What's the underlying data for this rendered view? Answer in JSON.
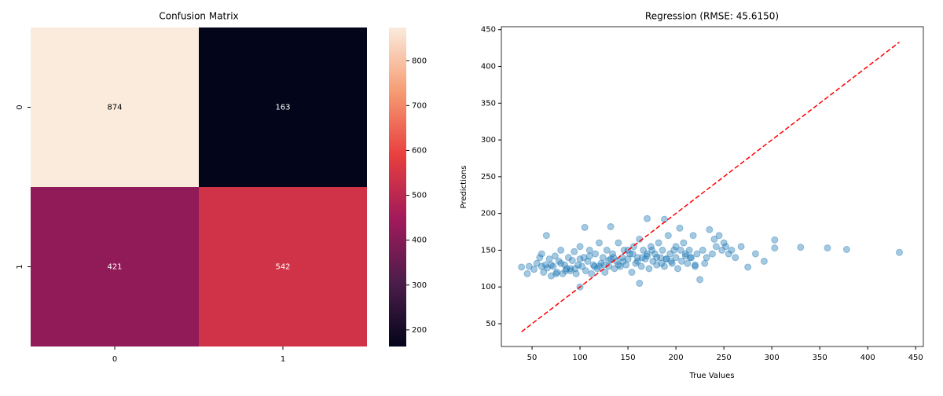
{
  "chart_data": [
    {
      "type": "heatmap",
      "title": "Confusion Matrix",
      "x_categories": [
        "0",
        "1"
      ],
      "y_categories": [
        "0",
        "1"
      ],
      "values": [
        [
          874,
          163
        ],
        [
          421,
          542
        ]
      ],
      "clim": [
        163,
        874
      ],
      "cticks": [
        200,
        300,
        400,
        500,
        600,
        700,
        800
      ],
      "colormap": [
        "#03051a",
        "#4c1d4b",
        "#a11a5b",
        "#e83f3f",
        "#f69c73",
        "#faebdd"
      ]
    },
    {
      "type": "scatter",
      "title": "Regression (RMSE: 45.6150)",
      "xlabel": "True Values",
      "ylabel": "Predictions",
      "xlim": [
        18,
        458
      ],
      "ylim": [
        19,
        454
      ],
      "xticks": [
        50,
        100,
        150,
        200,
        250,
        300,
        350,
        400,
        450
      ],
      "yticks": [
        50,
        100,
        150,
        200,
        250,
        300,
        350,
        400,
        450
      ],
      "series": [
        {
          "color": "#1f77b4",
          "x": [
            39,
            45,
            47,
            52,
            55,
            58,
            60,
            62,
            64,
            65,
            66,
            68,
            70,
            72,
            74,
            76,
            78,
            80,
            82,
            84,
            86,
            88,
            90,
            92,
            94,
            96,
            98,
            100,
            100,
            102,
            104,
            105,
            106,
            108,
            110,
            112,
            114,
            116,
            118,
            120,
            122,
            124,
            126,
            128,
            130,
            132,
            132,
            134,
            136,
            138,
            140,
            142,
            144,
            146,
            148,
            150,
            152,
            154,
            156,
            158,
            160,
            162,
            162,
            164,
            166,
            168,
            170,
            170,
            172,
            174,
            176,
            178,
            180,
            182,
            184,
            186,
            188,
            188,
            190,
            192,
            194,
            196,
            198,
            200,
            202,
            204,
            206,
            208,
            210,
            212,
            214,
            216,
            218,
            220,
            222,
            225,
            228,
            230,
            232,
            235,
            238,
            240,
            242,
            245,
            248,
            250,
            252,
            255,
            258,
            262,
            268,
            275,
            283,
            292,
            303,
            303,
            330,
            358,
            378,
            433,
            60,
            70,
            80,
            90,
            100,
            110,
            120,
            130,
            140,
            150,
            160,
            170,
            180,
            190,
            200,
            210,
            220,
            75,
            85,
            95,
            115,
            125,
            135,
            145,
            155,
            165,
            175,
            185,
            195,
            205,
            215
          ],
          "y": [
            127,
            118,
            128,
            124,
            132,
            140,
            145,
            120,
            130,
            170,
            126,
            138,
            115,
            128,
            142,
            120,
            135,
            150,
            118,
            130,
            125,
            140,
            122,
            136,
            148,
            118,
            130,
            100,
            155,
            128,
            140,
            181,
            122,
            135,
            150,
            118,
            130,
            145,
            125,
            160,
            132,
            140,
            120,
            150,
            128,
            182,
            138,
            145,
            125,
            135,
            160,
            128,
            140,
            150,
            130,
            138,
            145,
            120,
            155,
            132,
            140,
            105,
            165,
            128,
            150,
            138,
            193,
            142,
            125,
            155,
            135,
            145,
            130,
            160,
            140,
            150,
            192,
            128,
            138,
            170,
            145,
            132,
            150,
            140,
            125,
            180,
            135,
            160,
            145,
            132,
            150,
            140,
            170,
            128,
            145,
            110,
            150,
            132,
            140,
            178,
            145,
            165,
            155,
            170,
            150,
            160,
            155,
            145,
            150,
            140,
            155,
            127,
            145,
            135,
            164,
            153,
            154,
            153,
            151,
            147,
            128,
            130,
            132,
            125,
            138,
            142,
            128,
            136,
            130,
            150,
            135,
            145,
            140,
            138,
            155,
            142,
            130,
            118,
            122,
            125,
            128,
            130,
            140,
            135,
            145,
            140,
            150,
            132,
            135,
            150,
            140
          ]
        },
        {
          "color": "#ff0000",
          "style": "dashed",
          "x": [
            39,
            433
          ],
          "y": [
            39,
            433
          ]
        }
      ]
    }
  ]
}
